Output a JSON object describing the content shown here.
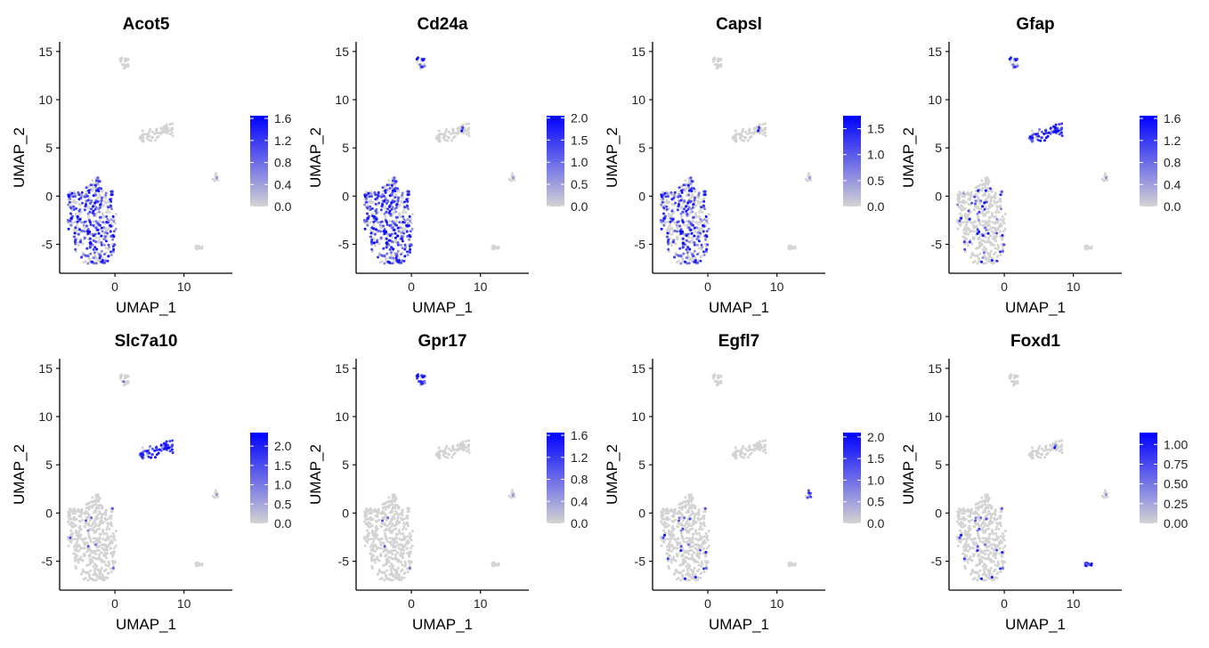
{
  "chart_data": {
    "type": "scatter",
    "layout": {
      "rows": 2,
      "cols": 4
    },
    "xlabel": "UMAP_1",
    "ylabel": "UMAP_2",
    "xlim": [
      -8,
      17
    ],
    "ylim": [
      -8,
      16
    ],
    "x_ticks": [
      0,
      10
    ],
    "y_ticks": [
      -5,
      0,
      5,
      10,
      15
    ],
    "grid": false,
    "legend": "right",
    "color_low": "#d3d3d3",
    "color_high": "#0000ff",
    "clusters": [
      {
        "name": "main",
        "cx": -3,
        "cy": -2.5,
        "points": 480
      },
      {
        "name": "right-elongated",
        "cx": 6,
        "cy": 6.5,
        "points": 70
      },
      {
        "name": "top",
        "cx": 1.2,
        "cy": 13.8,
        "points": 25
      },
      {
        "name": "small-right",
        "cx": 14.7,
        "cy": 2.1,
        "points": 10
      },
      {
        "name": "small-bottom",
        "cx": 12.3,
        "cy": -5.2,
        "points": 10
      }
    ],
    "panels": [
      {
        "title": "Acot5",
        "max": 1.65,
        "legend_ticks": [
          0.0,
          0.4,
          0.8,
          1.2,
          1.6
        ],
        "legend_labels": [
          "0.0",
          "0.4",
          "0.8",
          "1.2",
          "1.6"
        ],
        "expression": {
          "main": 0.55,
          "right-elongated": 0.02,
          "top": 0.02,
          "small-right": 0.02,
          "small-bottom": 0.02
        }
      },
      {
        "title": "Cd24a",
        "max": 2.05,
        "legend_ticks": [
          0.0,
          0.5,
          1.0,
          1.5,
          2.0
        ],
        "legend_labels": [
          "0.0",
          "0.5",
          "1.0",
          "1.5",
          "2.0"
        ],
        "expression": {
          "main": 0.65,
          "right-elongated": 0.1,
          "top": 0.45,
          "small-right": 0.05,
          "small-bottom": 0.02
        }
      },
      {
        "title": "Capsl",
        "max": 1.75,
        "legend_ticks": [
          0.0,
          0.5,
          1.0,
          1.5
        ],
        "legend_labels": [
          "0.0",
          "0.5",
          "1.0",
          "1.5"
        ],
        "expression": {
          "main": 0.45,
          "right-elongated": 0.1,
          "top": 0.02,
          "small-right": 0.05,
          "small-bottom": 0.02
        }
      },
      {
        "title": "Gfap",
        "max": 1.65,
        "legend_ticks": [
          0.0,
          0.4,
          0.8,
          1.2,
          1.6
        ],
        "legend_labels": [
          "0.0",
          "0.4",
          "0.8",
          "1.2",
          "1.6"
        ],
        "expression": {
          "main": 0.12,
          "right-elongated": 0.85,
          "top": 0.45,
          "small-right": 0.02,
          "small-bottom": 0.02
        }
      },
      {
        "title": "Slc7a10",
        "max": 2.35,
        "legend_ticks": [
          0.0,
          0.5,
          1.0,
          1.5,
          2.0
        ],
        "legend_labels": [
          "0.0",
          "0.5",
          "1.0",
          "1.5",
          "2.0"
        ],
        "expression": {
          "main": 0.02,
          "right-elongated": 0.9,
          "top": 0.05,
          "small-right": 0.05,
          "small-bottom": 0.02
        }
      },
      {
        "title": "Gpr17",
        "max": 1.65,
        "legend_ticks": [
          0.0,
          0.4,
          0.8,
          1.2,
          1.6
        ],
        "legend_labels": [
          "0.0",
          "0.4",
          "0.8",
          "1.2",
          "1.6"
        ],
        "expression": {
          "main": 0.01,
          "right-elongated": 0.02,
          "top": 0.9,
          "small-right": 0.1,
          "small-bottom": 0.02
        }
      },
      {
        "title": "Egfl7",
        "max": 2.1,
        "legend_ticks": [
          0.0,
          0.5,
          1.0,
          1.5,
          2.0
        ],
        "legend_labels": [
          "0.0",
          "0.5",
          "1.0",
          "1.5",
          "2.0"
        ],
        "expression": {
          "main": 0.04,
          "right-elongated": 0.02,
          "top": 0.02,
          "small-right": 0.9,
          "small-bottom": 0.02
        }
      },
      {
        "title": "Foxd1",
        "max": 1.15,
        "legend_ticks": [
          0.0,
          0.25,
          0.5,
          0.75,
          1.0
        ],
        "legend_labels": [
          "0.00",
          "0.25",
          "0.50",
          "0.75",
          "1.00"
        ],
        "expression": {
          "main": 0.04,
          "right-elongated": 0.08,
          "top": 0.02,
          "small-right": 0.03,
          "small-bottom": 0.9
        }
      }
    ]
  }
}
